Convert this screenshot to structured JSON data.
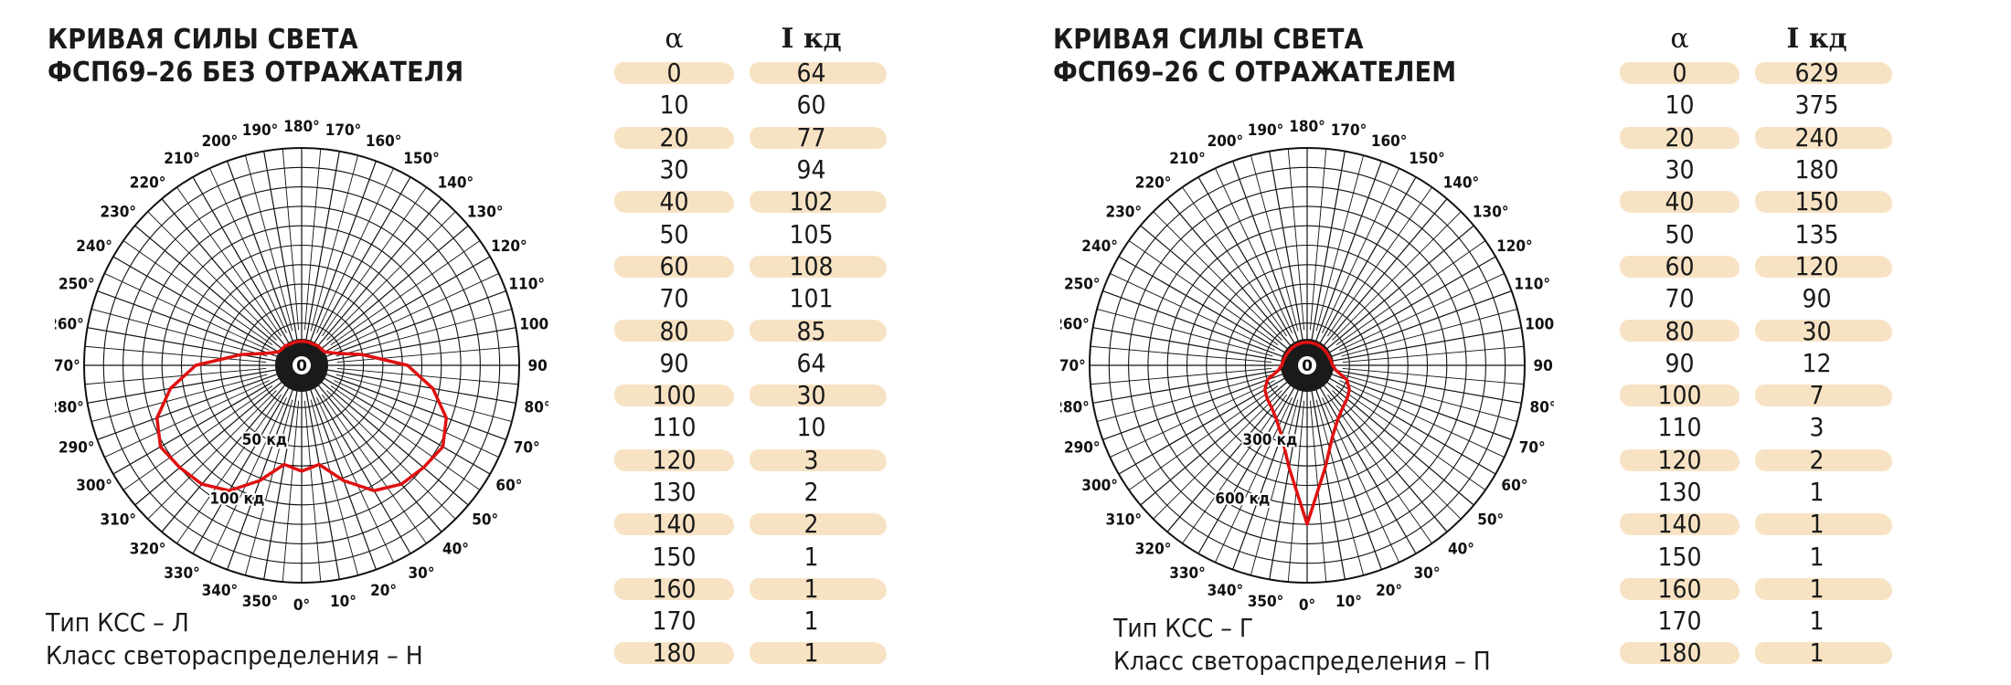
{
  "panels": [
    {
      "title": [
        "КРИВАЯ СИЛЫ СВЕТА",
        "ФСП69–26 БЕЗ ОТРАЖАТЕЛЯ"
      ],
      "ksstype": "Тип КСС – Л",
      "distclass": "Класс светораспределения – Н",
      "table_header": [
        "α",
        "I кд"
      ],
      "scale_labels": [
        {
          "value": 50,
          "text": "50 кд"
        },
        {
          "value": 100,
          "text": "100 кд"
        }
      ]
    },
    {
      "title": [
        "КРИВАЯ СИЛЫ СВЕТА",
        "ФСП69–26 С ОТРАЖАТЕЛЕМ"
      ],
      "ksstype": "Тип КСС – Г",
      "distclass": "Класс светораспределения – П",
      "table_header": [
        "α",
        "I кд"
      ],
      "scale_labels": [
        {
          "value": 300,
          "text": "300 кд"
        },
        {
          "value": 600,
          "text": "600 кд"
        }
      ]
    }
  ],
  "chart_data": [
    {
      "type": "polar",
      "title": "КРИВАЯ СИЛЫ СВЕТА ФСП69–26 БЕЗ ОТРАЖАТЕЛЯ",
      "angle_unit": "°",
      "value_unit": "кд",
      "center_label": "0",
      "angle_ticks": [
        "0°",
        "10°",
        "20°",
        "30°",
        "40°",
        "50°",
        "60°",
        "70°",
        "80°",
        "90°",
        "100°",
        "110°",
        "120°",
        "130°",
        "140°",
        "150°",
        "160°",
        "170°",
        "180°",
        "190°",
        "200°",
        "210°",
        "220°",
        "230°",
        "240°",
        "250°",
        "260°",
        "270°",
        "280°",
        "290°",
        "300°",
        "310°",
        "320°",
        "330°",
        "340°",
        "350°"
      ],
      "r_max": 150,
      "series": [
        {
          "color": "#e01010",
          "alpha": [
            0,
            10,
            20,
            30,
            40,
            50,
            60,
            70,
            80,
            90,
            100,
            110,
            120,
            130,
            140,
            150,
            160,
            170,
            180
          ],
          "intensity": [
            64,
            60,
            77,
            94,
            102,
            105,
            108,
            101,
            85,
            64,
            30,
            10,
            3,
            2,
            2,
            1,
            1,
            1,
            1
          ]
        }
      ],
      "grid": true
    },
    {
      "type": "polar",
      "title": "КРИВАЯ СИЛЫ СВЕТА ФСП69–26 С ОТРАЖАТЕЛЕМ",
      "angle_unit": "°",
      "value_unit": "кд",
      "center_label": "0",
      "angle_ticks": [
        "0°",
        "10°",
        "20°",
        "30°",
        "40°",
        "50°",
        "60°",
        "70°",
        "80°",
        "90°",
        "100°",
        "110°",
        "120°",
        "130°",
        "140°",
        "150°",
        "160°",
        "170°",
        "180°",
        "190°",
        "200°",
        "210°",
        "220°",
        "230°",
        "240°",
        "250°",
        "260°",
        "270°",
        "280°",
        "290°",
        "300°",
        "310°",
        "320°",
        "330°",
        "340°",
        "350°"
      ],
      "r_max": 900,
      "series": [
        {
          "color": "#e01010",
          "alpha": [
            0,
            10,
            20,
            30,
            40,
            50,
            60,
            70,
            80,
            90,
            100,
            110,
            120,
            130,
            140,
            150,
            160,
            170,
            180
          ],
          "intensity": [
            629,
            375,
            240,
            180,
            150,
            135,
            120,
            90,
            30,
            12,
            7,
            3,
            2,
            1,
            1,
            1,
            1,
            1,
            1
          ]
        }
      ],
      "grid": true
    }
  ]
}
